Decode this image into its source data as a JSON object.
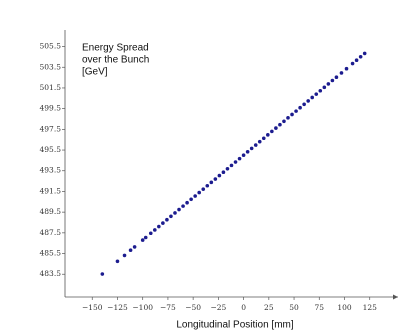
{
  "chart_data": {
    "type": "scatter",
    "y_label_lines": [
      "Energy Spread",
      "over the Bunch",
      "[GeV]"
    ],
    "x_label": "Longitudinal Position [mm]",
    "xlim": [
      -177,
      155
    ],
    "ylim": [
      481.3,
      507.1
    ],
    "xticks": [
      {
        "value": -150,
        "label": "−150"
      },
      {
        "value": -125,
        "label": "−125"
      },
      {
        "value": -100,
        "label": "−100"
      },
      {
        "value": -75,
        "label": "−75"
      },
      {
        "value": -50,
        "label": "−50"
      },
      {
        "value": -25,
        "label": "−25"
      },
      0,
      25,
      50,
      75,
      100,
      125
    ],
    "yticks": [
      483.5,
      485.5,
      487.5,
      489.5,
      491.5,
      493.5,
      495.5,
      497.5,
      499.5,
      501.5,
      503.5,
      505.5
    ],
    "series": [
      {
        "color": "#1c1c8f",
        "x": [
          -140,
          -125,
          -118,
          -112,
          -108,
          -100,
          -97,
          -92,
          -88,
          -84,
          -80,
          -76,
          -72,
          -68,
          -64,
          -60,
          -56,
          -52,
          -48,
          -44,
          -40,
          -36,
          -32,
          -28,
          -24,
          -20,
          -16,
          -12,
          -8,
          -4,
          0,
          4,
          8,
          12,
          16,
          20,
          24,
          28,
          32,
          36,
          40,
          44,
          48,
          52,
          56,
          60,
          64,
          68,
          72,
          76,
          80,
          84,
          88,
          92,
          97,
          102,
          108,
          112,
          116,
          120
        ],
        "values": [
          483.52,
          484.75,
          485.32,
          485.82,
          486.14,
          486.8,
          487.05,
          487.46,
          487.78,
          488.11,
          488.44,
          488.77,
          489.1,
          489.42,
          489.75,
          490.08,
          490.41,
          490.74,
          491.06,
          491.39,
          491.72,
          492.05,
          492.38,
          492.7,
          493.03,
          493.36,
          493.69,
          494.02,
          494.34,
          494.67,
          495,
          495.33,
          495.66,
          495.98,
          496.31,
          496.64,
          496.97,
          497.3,
          497.62,
          497.95,
          498.28,
          498.61,
          498.94,
          499.26,
          499.59,
          499.92,
          500.25,
          500.58,
          500.9,
          501.23,
          501.56,
          501.89,
          502.22,
          502.54,
          502.95,
          503.36,
          503.86,
          504.18,
          504.51,
          504.84
        ]
      }
    ]
  }
}
